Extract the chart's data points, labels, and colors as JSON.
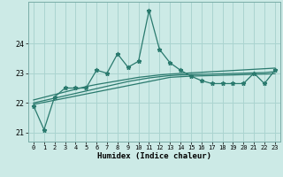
{
  "xlabel": "Humidex (Indice chaleur)",
  "x": [
    0,
    1,
    2,
    3,
    4,
    5,
    6,
    7,
    8,
    9,
    10,
    11,
    12,
    13,
    14,
    15,
    16,
    17,
    18,
    19,
    20,
    21,
    22,
    23
  ],
  "main_line": [
    21.9,
    21.1,
    22.2,
    22.5,
    22.5,
    22.5,
    23.1,
    23.0,
    23.65,
    23.2,
    23.4,
    25.1,
    23.8,
    23.35,
    23.1,
    22.9,
    22.75,
    22.65,
    22.65,
    22.65,
    22.65,
    23.0,
    22.65,
    23.1
  ],
  "trend_line1": [
    21.95,
    22.02,
    22.09,
    22.16,
    22.23,
    22.3,
    22.37,
    22.44,
    22.51,
    22.58,
    22.65,
    22.72,
    22.79,
    22.86,
    22.88,
    22.9,
    22.91,
    22.92,
    22.93,
    22.94,
    22.95,
    22.96,
    22.97,
    22.98
  ],
  "trend_line2": [
    22.0,
    22.08,
    22.16,
    22.24,
    22.32,
    22.4,
    22.48,
    22.56,
    22.64,
    22.72,
    22.78,
    22.84,
    22.88,
    22.92,
    22.94,
    22.95,
    22.96,
    22.97,
    22.98,
    22.99,
    23.0,
    23.01,
    23.02,
    23.05
  ],
  "trend_line3": [
    22.1,
    22.19,
    22.28,
    22.37,
    22.46,
    22.55,
    22.62,
    22.68,
    22.74,
    22.8,
    22.86,
    22.9,
    22.94,
    22.97,
    22.99,
    23.01,
    23.03,
    23.05,
    23.07,
    23.09,
    23.11,
    23.13,
    23.15,
    23.17
  ],
  "line_color": "#2a7a6e",
  "bg_color": "#cceae6",
  "grid_color": "#aad4d0",
  "ylim": [
    20.7,
    25.4
  ],
  "yticks": [
    21,
    22,
    23,
    24
  ],
  "xticks": [
    0,
    1,
    2,
    3,
    4,
    5,
    6,
    7,
    8,
    9,
    10,
    11,
    12,
    13,
    14,
    15,
    16,
    17,
    18,
    19,
    20,
    21,
    22,
    23
  ]
}
